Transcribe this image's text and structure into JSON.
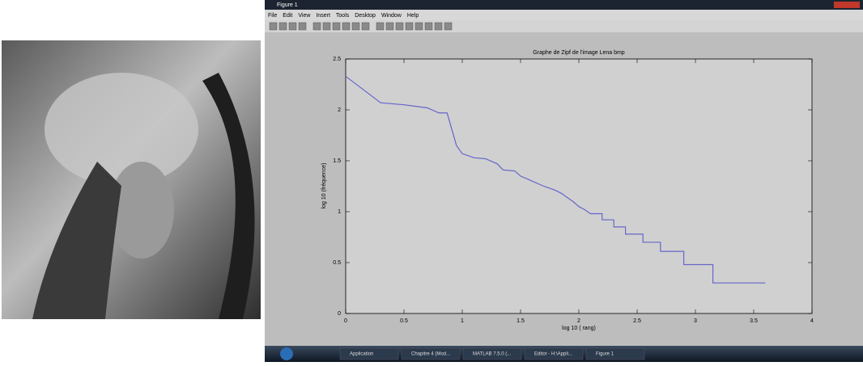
{
  "window": {
    "title": "Figure 1",
    "menu": [
      "File",
      "Edit",
      "View",
      "Insert",
      "Tools",
      "Desktop",
      "Window",
      "Help"
    ]
  },
  "taskbar": {
    "items": [
      "Application",
      "Chapitre 4 (Mod...",
      "MATLAB 7.5.0 (...",
      "Editor - H:\\Appli...",
      "Figure 1"
    ]
  },
  "chart_data": {
    "type": "line",
    "title": "Graphe de Zipf de l'image Lena bmp",
    "xlabel": "log 10 ( rang)",
    "ylabel": "log 10 (fréquence)",
    "x": [
      0,
      0.3,
      0.5,
      0.7,
      0.8,
      0.87,
      0.95,
      1.0,
      1.1,
      1.2,
      1.3,
      1.35,
      1.45,
      1.5,
      1.6,
      1.7,
      1.8,
      1.85,
      1.9,
      1.95,
      2.0,
      2.05,
      2.1,
      2.2,
      2.2,
      2.3,
      2.3,
      2.4,
      2.4,
      2.55,
      2.55,
      2.7,
      2.7,
      2.9,
      2.9,
      3.15,
      3.15,
      3.6
    ],
    "values": [
      2.33,
      2.07,
      2.05,
      2.02,
      1.97,
      1.97,
      1.65,
      1.57,
      1.53,
      1.52,
      1.47,
      1.41,
      1.4,
      1.35,
      1.3,
      1.25,
      1.21,
      1.18,
      1.14,
      1.1,
      1.05,
      1.02,
      0.98,
      0.98,
      0.92,
      0.92,
      0.85,
      0.85,
      0.78,
      0.78,
      0.7,
      0.7,
      0.61,
      0.61,
      0.48,
      0.48,
      0.3,
      0.3
    ],
    "color": "#6666cc",
    "xlim": [
      0,
      4
    ],
    "xticks": [
      0,
      0.5,
      1,
      1.5,
      2,
      2.5,
      3,
      3.5,
      4
    ],
    "ylim": [
      0,
      2.5
    ],
    "yticks": [
      0,
      0.5,
      1,
      1.5,
      2,
      2.5
    ],
    "grid": false
  }
}
